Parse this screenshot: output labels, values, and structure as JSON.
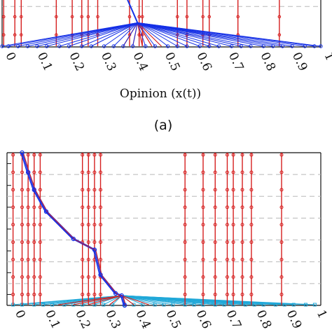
{
  "colors": {
    "red": "#d61f1f",
    "blue": "#1530e6",
    "cyan": "#21a8d8",
    "grid": "#b8b8b8",
    "axis": "#111111"
  },
  "chart_data": [
    {
      "type": "line",
      "panel_label": "",
      "xlabel": "Opinion (x(t))",
      "ylabel": "",
      "xlim": [
        0,
        1
      ],
      "ylim": [
        0,
        8
      ],
      "x_tick_labels": [
        "0",
        "0.1",
        "0.2",
        "0.3",
        "0.4",
        "0.5",
        "0.6",
        "0.7",
        "0.8",
        "0.9",
        "1"
      ],
      "x_ticks": [
        0,
        0.1,
        0.2,
        0.3,
        0.4,
        0.5,
        0.6,
        0.7,
        0.8,
        0.9,
        1
      ],
      "grid": true,
      "y_gridlines": [
        6.7
      ],
      "stubborn_opinions_red": [
        0.005,
        0.04,
        0.06,
        0.17,
        0.22,
        0.25,
        0.27,
        0.3,
        0.4,
        0.43,
        0.44,
        0.55,
        0.58,
        0.63,
        0.65,
        0.74,
        0.87
      ],
      "consensus_value": 0.425,
      "initial_opinions_blue": [
        0.0,
        0.02,
        0.05,
        0.08,
        0.11,
        0.14,
        0.18,
        0.21,
        0.25,
        0.28,
        0.32,
        0.35,
        0.38,
        0.41,
        0.45,
        0.48,
        0.52,
        0.55,
        0.58,
        0.62,
        0.65,
        0.68,
        0.72,
        0.75,
        0.78,
        0.82,
        0.85,
        0.88,
        0.91,
        0.95,
        0.98,
        1.0
      ]
    },
    {
      "type": "line",
      "panel_label": "(a)",
      "xlabel": "",
      "ylabel": "",
      "xlim": [
        -0.02,
        1.02
      ],
      "ylim": [
        0,
        7
      ],
      "x_tick_labels": [
        "0",
        "0.1",
        "0.2",
        "0.3",
        "0.4",
        "0.5",
        "0.6",
        "0.7",
        "0.8",
        "0.9",
        "1"
      ],
      "x_ticks": [
        0,
        0.1,
        0.2,
        0.3,
        0.4,
        0.5,
        0.6,
        0.7,
        0.8,
        0.9,
        1
      ],
      "grid": true,
      "y_gridlines": [
        1,
        2,
        3,
        4,
        5,
        6
      ],
      "stubborn_opinions_red": [
        0.0,
        0.03,
        0.05,
        0.07,
        0.09,
        0.23,
        0.25,
        0.27,
        0.29,
        0.57,
        0.63,
        0.67,
        0.71,
        0.73,
        0.76,
        0.79,
        0.89
      ],
      "consensus_value": 0.36,
      "trajectory_blue": [
        {
          "x": 0.03,
          "y": 7.0
        },
        {
          "x": 0.05,
          "y": 6.1
        },
        {
          "x": 0.07,
          "y": 5.3
        },
        {
          "x": 0.11,
          "y": 4.3
        },
        {
          "x": 0.2,
          "y": 3.05
        },
        {
          "x": 0.27,
          "y": 2.55
        },
        {
          "x": 0.29,
          "y": 1.4
        },
        {
          "x": 0.34,
          "y": 0.55
        },
        {
          "x": 0.36,
          "y": 0.45
        },
        {
          "x": 0.37,
          "y": 0.0
        }
      ],
      "initial_opinions_cyan": [
        0.0,
        0.03,
        0.07,
        0.1,
        0.13,
        0.17,
        0.2,
        0.23,
        0.27,
        0.3,
        0.33,
        0.37,
        0.4,
        0.43,
        0.47,
        0.5,
        0.53,
        0.57,
        0.6,
        0.63,
        0.67,
        0.7,
        0.73,
        0.77,
        0.8,
        0.83,
        0.87,
        0.9,
        0.93,
        0.97,
        1.0
      ]
    }
  ]
}
